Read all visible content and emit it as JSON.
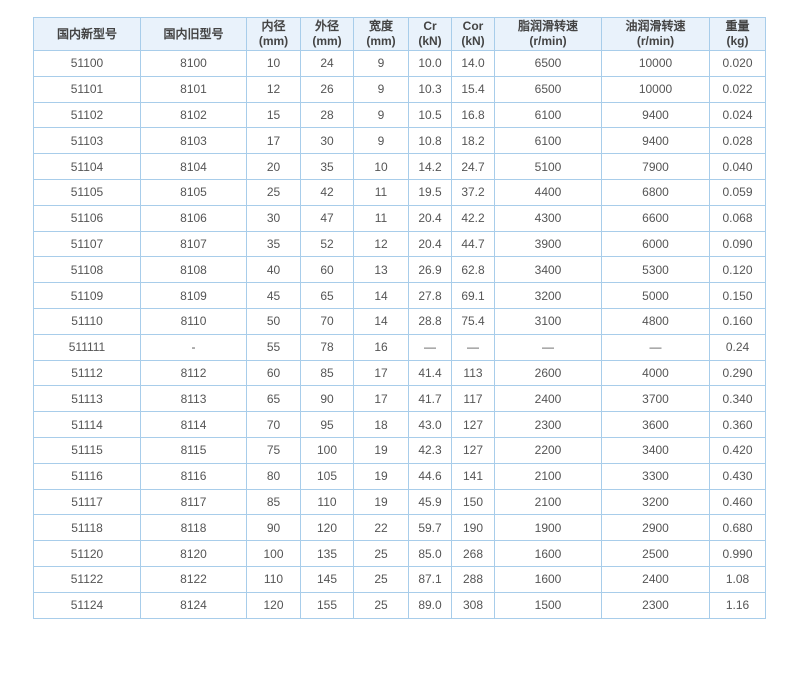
{
  "table": {
    "headers": [
      [
        "国内新型号",
        ""
      ],
      [
        "国内旧型号",
        ""
      ],
      [
        "内径",
        "(mm)"
      ],
      [
        "外径",
        "(mm)"
      ],
      [
        "宽度",
        "(mm)"
      ],
      [
        "Cr",
        "(kN)"
      ],
      [
        "Cor",
        "(kN)"
      ],
      [
        "脂润滑转速",
        "(r/min)"
      ],
      [
        "油润滑转速",
        "(r/min)"
      ],
      [
        "重量",
        "(kg)"
      ]
    ],
    "rows": [
      [
        "51100",
        "8100",
        "10",
        "24",
        "9",
        "10.0",
        "14.0",
        "6500",
        "10000",
        "0.020"
      ],
      [
        "51101",
        "8101",
        "12",
        "26",
        "9",
        "10.3",
        "15.4",
        "6500",
        "10000",
        "0.022"
      ],
      [
        "51102",
        "8102",
        "15",
        "28",
        "9",
        "10.5",
        "16.8",
        "6100",
        "9400",
        "0.024"
      ],
      [
        "51103",
        "8103",
        "17",
        "30",
        "9",
        "10.8",
        "18.2",
        "6100",
        "9400",
        "0.028"
      ],
      [
        "51104",
        "8104",
        "20",
        "35",
        "10",
        "14.2",
        "24.7",
        "5100",
        "7900",
        "0.040"
      ],
      [
        "51105",
        "8105",
        "25",
        "42",
        "11",
        "19.5",
        "37.2",
        "4400",
        "6800",
        "0.059"
      ],
      [
        "51106",
        "8106",
        "30",
        "47",
        "11",
        "20.4",
        "42.2",
        "4300",
        "6600",
        "0.068"
      ],
      [
        "51107",
        "8107",
        "35",
        "52",
        "12",
        "20.4",
        "44.7",
        "3900",
        "6000",
        "0.090"
      ],
      [
        "51108",
        "8108",
        "40",
        "60",
        "13",
        "26.9",
        "62.8",
        "3400",
        "5300",
        "0.120"
      ],
      [
        "51109",
        "8109",
        "45",
        "65",
        "14",
        "27.8",
        "69.1",
        "3200",
        "5000",
        "0.150"
      ],
      [
        "51110",
        "8110",
        "50",
        "70",
        "14",
        "28.8",
        "75.4",
        "3100",
        "4800",
        "0.160"
      ],
      [
        "511111",
        "-",
        "55",
        "78",
        "16",
        "—",
        "—",
        "—",
        "—",
        "0.24"
      ],
      [
        "51112",
        "8112",
        "60",
        "85",
        "17",
        "41.4",
        "113",
        "2600",
        "4000",
        "0.290"
      ],
      [
        "51113",
        "8113",
        "65",
        "90",
        "17",
        "41.7",
        "117",
        "2400",
        "3700",
        "0.340"
      ],
      [
        "51114",
        "8114",
        "70",
        "95",
        "18",
        "43.0",
        "127",
        "2300",
        "3600",
        "0.360"
      ],
      [
        "51115",
        "8115",
        "75",
        "100",
        "19",
        "42.3",
        "127",
        "2200",
        "3400",
        "0.420"
      ],
      [
        "51116",
        "8116",
        "80",
        "105",
        "19",
        "44.6",
        "141",
        "2100",
        "3300",
        "0.430"
      ],
      [
        "51117",
        "8117",
        "85",
        "110",
        "19",
        "45.9",
        "150",
        "2100",
        "3200",
        "0.460"
      ],
      [
        "51118",
        "8118",
        "90",
        "120",
        "22",
        "59.7",
        "190",
        "1900",
        "2900",
        "0.680"
      ],
      [
        "51120",
        "8120",
        "100",
        "135",
        "25",
        "85.0",
        "268",
        "1600",
        "2500",
        "0.990"
      ],
      [
        "51122",
        "8122",
        "110",
        "145",
        "25",
        "87.1",
        "288",
        "1600",
        "2400",
        "1.08"
      ],
      [
        "51124",
        "8124",
        "120",
        "155",
        "25",
        "89.0",
        "308",
        "1500",
        "2300",
        "1.16"
      ]
    ]
  }
}
